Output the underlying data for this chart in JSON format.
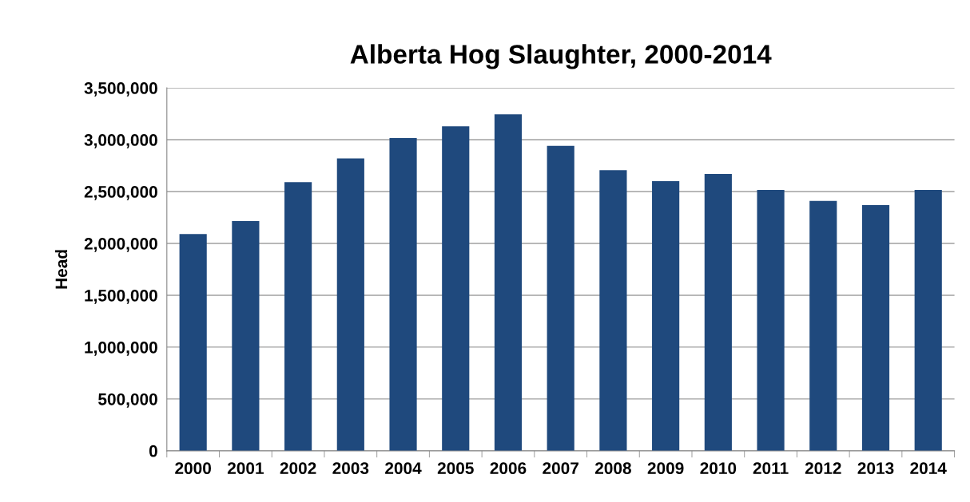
{
  "chart_data": {
    "type": "bar",
    "title": "Alberta Hog Slaughter, 2000-2014",
    "ylabel": "Head",
    "categories": [
      "2000",
      "2001",
      "2002",
      "2003",
      "2004",
      "2005",
      "2006",
      "2007",
      "2008",
      "2009",
      "2010",
      "2011",
      "2012",
      "2013",
      "2014"
    ],
    "values": [
      2090000,
      2215000,
      2590000,
      2820000,
      3015000,
      3130000,
      3245000,
      2940000,
      2705000,
      2600000,
      2670000,
      2515000,
      2410000,
      2370000,
      2515000
    ],
    "color": "#1f497d",
    "ylim": [
      0,
      3500000
    ],
    "yticks": [
      {
        "value": 0,
        "label": "0"
      },
      {
        "value": 500000,
        "label": "500,000"
      },
      {
        "value": 1000000,
        "label": "1,000,000"
      },
      {
        "value": 1500000,
        "label": "1,500,000"
      },
      {
        "value": 2000000,
        "label": "2,000,000"
      },
      {
        "value": 2500000,
        "label": "2,500,000"
      },
      {
        "value": 3000000,
        "label": "3,000,000"
      },
      {
        "value": 3500000,
        "label": "3,500,000"
      }
    ],
    "grid": "y",
    "legend": false
  }
}
